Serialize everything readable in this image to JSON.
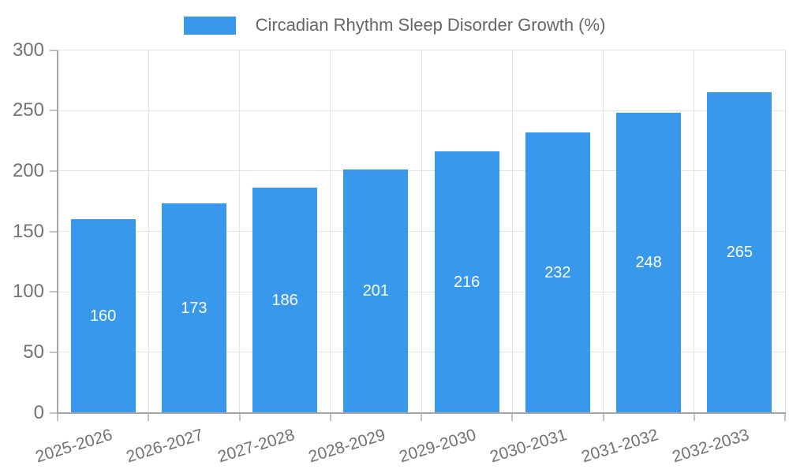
{
  "chart_data": {
    "type": "bar",
    "title": "Circadian Rhythm Sleep Disorder Growth (%)",
    "categories": [
      "2025-2026",
      "2026-2027",
      "2027-2028",
      "2028-2029",
      "2029-2030",
      "2030-2031",
      "2031-2032",
      "2032-2033"
    ],
    "values": [
      160,
      173,
      186,
      201,
      216,
      232,
      248,
      265
    ],
    "xlabel": "",
    "ylabel": "",
    "ylim": [
      0,
      300
    ],
    "y_ticks": [
      0,
      50,
      100,
      150,
      200,
      250,
      300
    ],
    "grid": true,
    "legend_position": "top",
    "style": {
      "bar": "#3899ec",
      "grid_line": "#e3e3e3",
      "axis_line": "#a6a6a6",
      "tick_mark": "#c2c2c2",
      "tick_label": "#737373",
      "title": "#666666",
      "value_label": "#ffffff",
      "background": "#ffffff"
    }
  }
}
